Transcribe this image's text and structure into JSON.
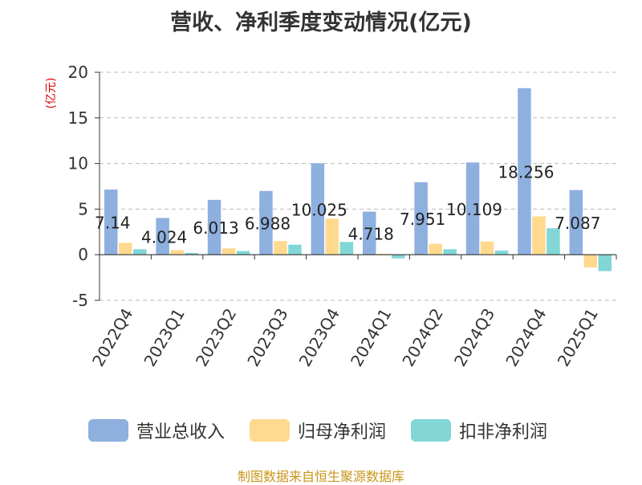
{
  "title": "营收、净利季度变动情况(亿元)",
  "source": "制图数据来自恒生聚源数据库",
  "colors": {
    "revenue": "#8eb0df",
    "net_profit": "#ffd98e",
    "deducted_profit": "#82d6d6",
    "unit_label": "#dd0000",
    "source": "#c8961a"
  },
  "chart_data": {
    "type": "bar",
    "title": "营收、净利季度变动情况(亿元)",
    "ylabel": "(亿元)",
    "ylim": [
      -5,
      20
    ],
    "yticks": [
      20,
      15,
      10,
      5,
      0,
      -5
    ],
    "grid": true,
    "legend_position": "bottom",
    "categories": [
      "2022Q4",
      "2023Q1",
      "2023Q2",
      "2023Q3",
      "2023Q4",
      "2024Q1",
      "2024Q2",
      "2024Q3",
      "2024Q4",
      "2025Q1"
    ],
    "series": [
      {
        "name": "营业总收入",
        "values": [
          7.14,
          4.024,
          6.013,
          6.988,
          10.025,
          4.718,
          7.951,
          10.109,
          18.256,
          7.087
        ]
      },
      {
        "name": "归母净利润",
        "values": [
          1.3,
          0.5,
          0.7,
          1.5,
          3.95,
          0.1,
          1.2,
          1.45,
          4.2,
          -1.4
        ]
      },
      {
        "name": "扣非净利润",
        "values": [
          0.6,
          0.2,
          0.4,
          1.1,
          1.4,
          -0.4,
          0.6,
          0.45,
          2.9,
          -1.8
        ]
      }
    ],
    "data_labels": [
      "7.14",
      "4.024",
      "6.013",
      "6.988",
      "10.025",
      "4.718",
      "7.951",
      "10.109",
      "18.256",
      "7.087"
    ]
  }
}
